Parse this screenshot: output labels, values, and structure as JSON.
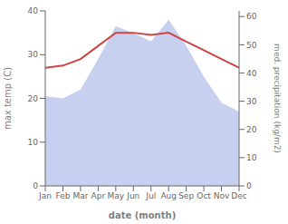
{
  "chart_data": {
    "type": "line",
    "xlabel": "date (month)",
    "ylabel": "max temp (C)",
    "y2label": "med. precipitation (kg/m2)",
    "categories": [
      "Jan",
      "Feb",
      "Mar",
      "Apr",
      "May",
      "Jun",
      "Jul",
      "Aug",
      "Sep",
      "Oct",
      "Nov",
      "Dec"
    ],
    "series": [
      {
        "type": "area",
        "color": "#c8d0f0",
        "values": [
          20.5,
          20,
          22,
          29,
          36.5,
          35,
          33,
          38,
          32,
          25,
          19,
          17
        ]
      },
      {
        "type": "line",
        "color": "#cc4444",
        "values": [
          27,
          27.5,
          29,
          32,
          35,
          35,
          34.5,
          35,
          33,
          31,
          29,
          27
        ]
      }
    ],
    "ylim": [
      0,
      40
    ],
    "yticks": [
      0,
      10,
      20,
      30,
      40
    ],
    "y2lim": [
      0,
      62
    ],
    "y2ticks": [
      0,
      10,
      20,
      30,
      40,
      50,
      60
    ],
    "grid": false
  }
}
